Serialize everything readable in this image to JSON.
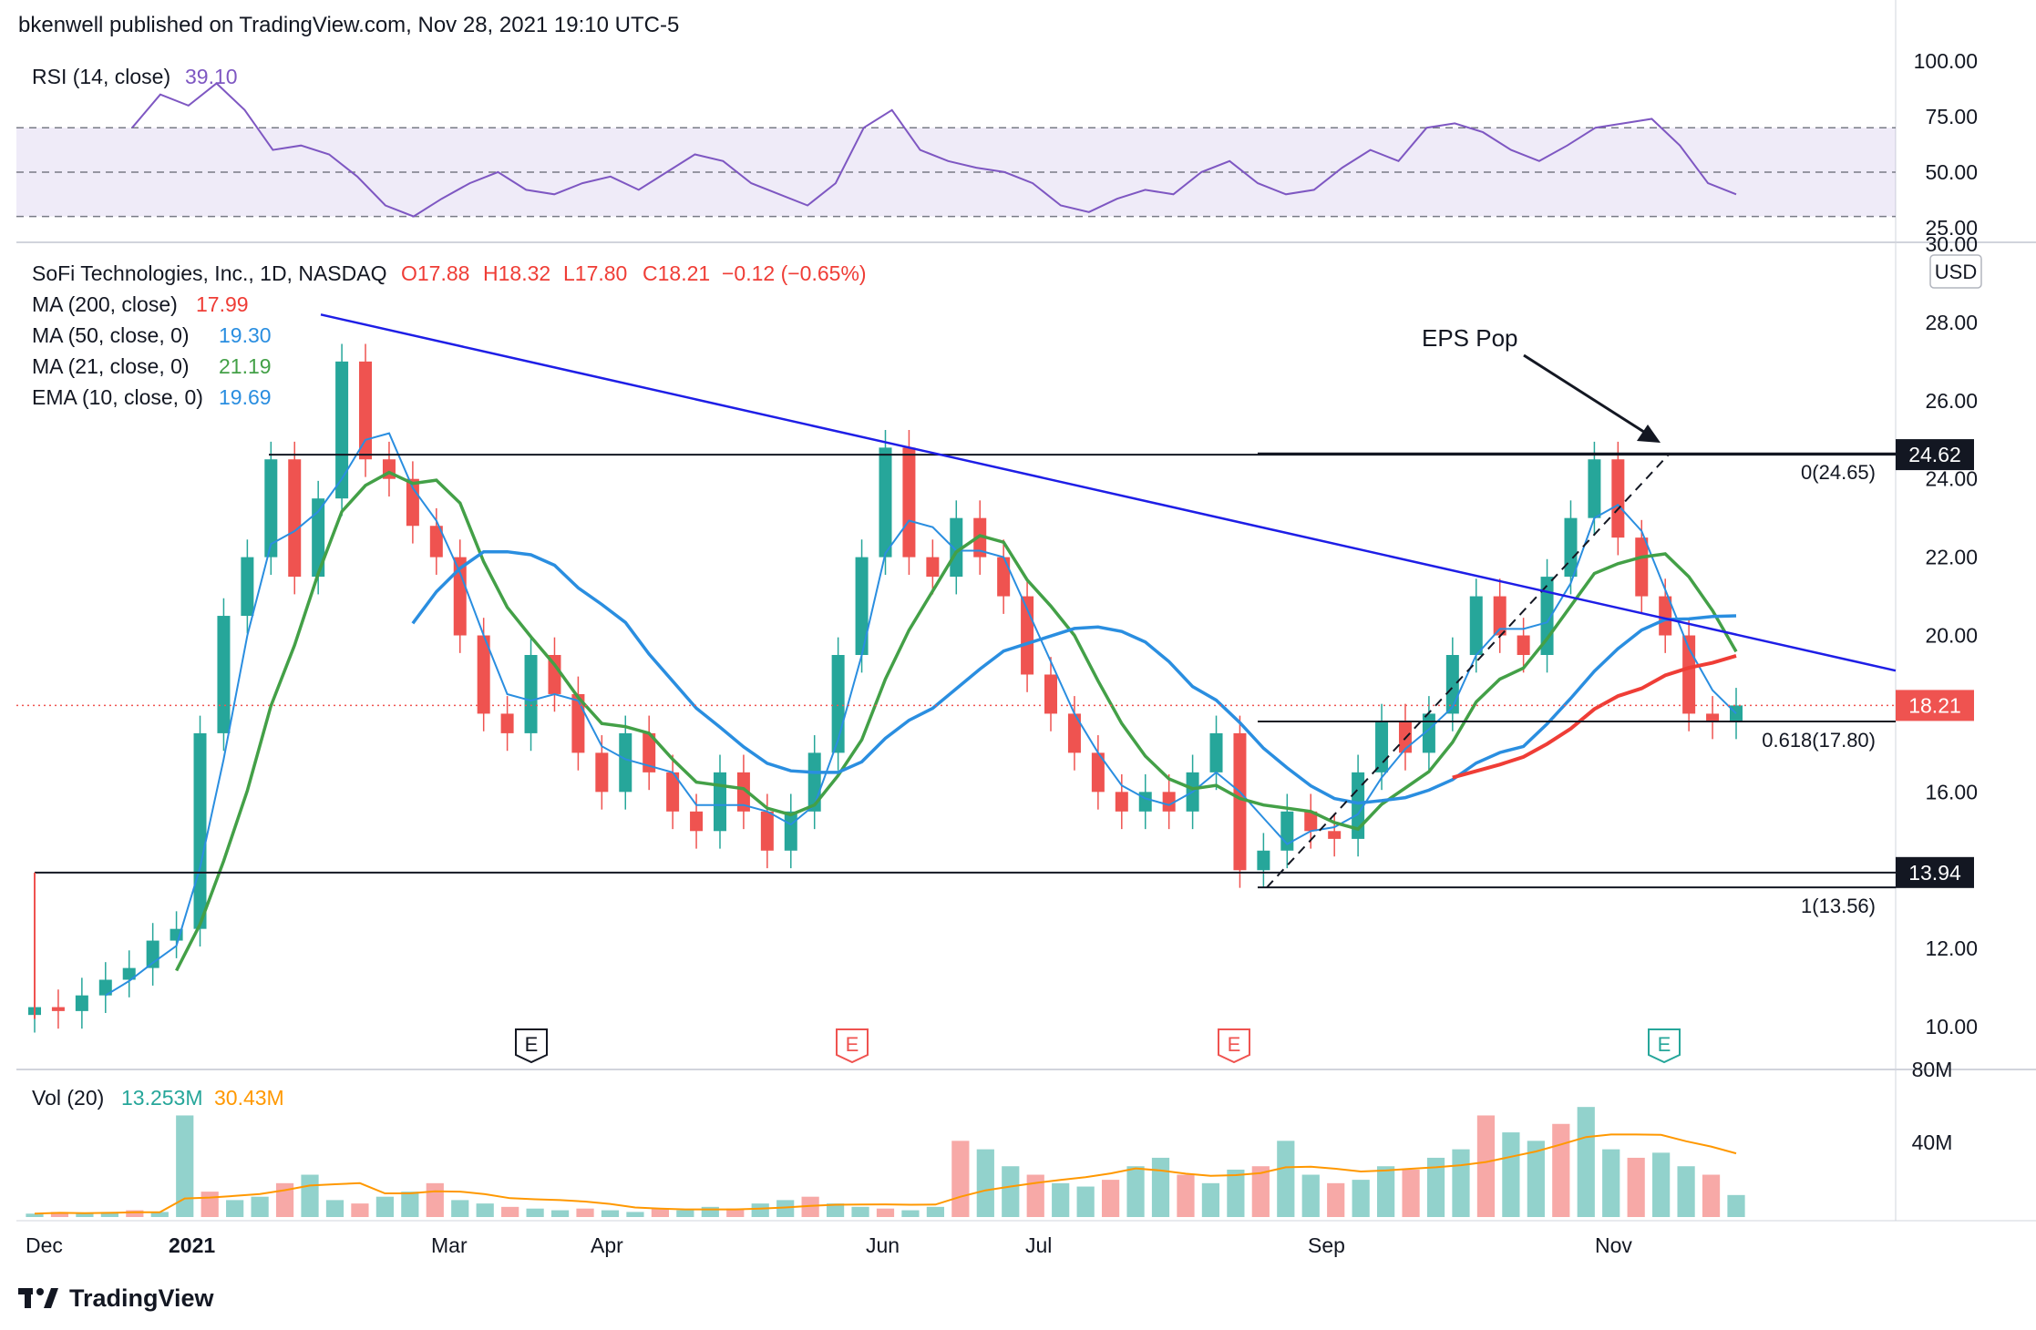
{
  "header": {
    "publisher": "bkenwell published on TradingView.com, Nov 28, 2021 19:10 UTC-5"
  },
  "footer": {
    "brand": "TradingView"
  },
  "rsi": {
    "label": "RSI (14, close)",
    "value": "39.10",
    "ticks": [
      "100.00",
      "75.00",
      "50.00",
      "25.00"
    ],
    "color": "#7e57c2"
  },
  "main": {
    "symbol": "SoFi Technologies, Inc., 1D, NASDAQ",
    "o": "17.88",
    "h": "18.32",
    "l": "17.80",
    "c": "18.21",
    "change": "−0.12 (−0.65%)",
    "currency": "USD",
    "indicators": [
      {
        "label": "MA (200, close)",
        "value": "17.99",
        "color": "#ef3d36"
      },
      {
        "label": "MA (50, close, 0)",
        "value": "19.30",
        "color": "#2a8ee0"
      },
      {
        "label": "MA (21, close, 0)",
        "value": "21.19",
        "color": "#43a047"
      },
      {
        "label": "EMA (10, close, 0)",
        "value": "19.69",
        "color": "#2a8ee0"
      }
    ],
    "price_ticks": [
      "30.00",
      "28.00",
      "26.00",
      "24.00",
      "22.00",
      "20.00",
      "16.00",
      "12.00",
      "10.00"
    ],
    "last_price_label": "18.21",
    "level_labels": {
      "upper": "24.62",
      "lower": "13.94"
    },
    "fib_labels": [
      "0(24.65)",
      "0.618(17.80)",
      "1(13.56)"
    ],
    "annotation": "EPS Pop",
    "earnings_markers": [
      "E",
      "E",
      "E",
      "E"
    ]
  },
  "volume": {
    "label": "Vol (20)",
    "value": "13.253M",
    "ma_value": "30.43M",
    "ticks": [
      "80M",
      "40M"
    ]
  },
  "xaxis": {
    "labels": [
      "Dec",
      "2021",
      "Mar",
      "Apr",
      "Jun",
      "Jul",
      "Sep",
      "Nov"
    ]
  },
  "chart_data": {
    "type": "candlestick",
    "title": "SoFi Technologies, Inc., 1D, NASDAQ",
    "x_range": [
      "2020-12",
      "2021-11"
    ],
    "ylim": [
      9,
      30
    ],
    "price_approx_closes": [
      10.5,
      10.4,
      10.8,
      11.2,
      11.5,
      12.2,
      12.5,
      17.5,
      20.5,
      22.0,
      24.5,
      21.5,
      23.5,
      27.0,
      24.5,
      24.0,
      22.8,
      22.0,
      20.0,
      18.0,
      17.5,
      19.5,
      18.5,
      17.0,
      16.0,
      17.5,
      16.5,
      15.5,
      15.0,
      16.5,
      15.5,
      14.5,
      15.5,
      17.0,
      19.5,
      22.0,
      24.8,
      22.0,
      21.5,
      23.0,
      22.0,
      21.0,
      19.0,
      18.0,
      17.0,
      16.0,
      15.5,
      16.0,
      15.5,
      16.5,
      17.5,
      14.0,
      14.5,
      15.5,
      15.0,
      14.8,
      16.5,
      17.8,
      17.0,
      18.0,
      19.5,
      21.0,
      20.0,
      19.5,
      21.5,
      23.0,
      24.5,
      22.5,
      21.0,
      20.0,
      18.0,
      17.8,
      18.21
    ],
    "moving_averages": {
      "MA 200": 17.99,
      "MA 50": 19.3,
      "MA 21": 21.19,
      "EMA 10": 19.69
    },
    "levels": [
      24.62,
      13.94
    ],
    "fib": [
      {
        "level": "0",
        "price": 24.65
      },
      {
        "level": "0.618",
        "price": 17.8
      },
      {
        "level": "1",
        "price": 13.56
      }
    ],
    "rsi_approx": [
      70,
      85,
      80,
      90,
      78,
      60,
      62,
      58,
      48,
      35,
      30,
      38,
      45,
      50,
      42,
      40,
      45,
      48,
      42,
      50,
      58,
      55,
      45,
      40,
      35,
      45,
      70,
      78,
      60,
      55,
      52,
      50,
      45,
      35,
      32,
      38,
      42,
      40,
      50,
      55,
      45,
      40,
      42,
      52,
      60,
      55,
      70,
      72,
      68,
      60,
      55,
      62,
      70,
      72,
      74,
      62,
      45,
      40
    ],
    "volume_approx_m": [
      2,
      3,
      2,
      3,
      4,
      3,
      60,
      15,
      10,
      12,
      20,
      25,
      10,
      8,
      12,
      15,
      20,
      10,
      8,
      6,
      5,
      4,
      5,
      4,
      3,
      5,
      4,
      6,
      5,
      8,
      10,
      12,
      8,
      6,
      5,
      4,
      6,
      45,
      40,
      30,
      25,
      20,
      18,
      22,
      30,
      35,
      25,
      20,
      28,
      30,
      45,
      25,
      20,
      22,
      30,
      28,
      35,
      40,
      60,
      50,
      45,
      55,
      65,
      40,
      35,
      38,
      30,
      25,
      13
    ]
  }
}
